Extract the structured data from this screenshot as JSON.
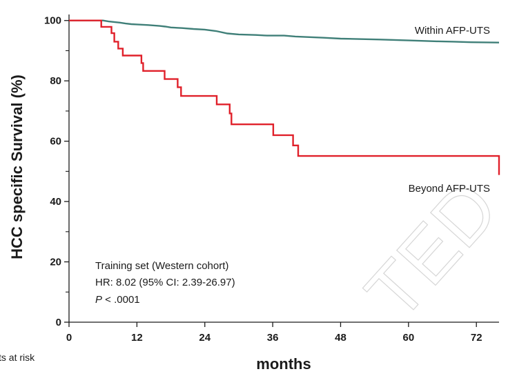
{
  "chart_data": {
    "type": "line",
    "step": true,
    "ylabel": "HCC specific Survival (%)",
    "xlabel": "months",
    "xlim": [
      0,
      76
    ],
    "ylim": [
      0,
      102
    ],
    "x_ticks": [
      0,
      12,
      24,
      36,
      48,
      60,
      72
    ],
    "y_ticks": [
      0,
      20,
      40,
      60,
      80,
      100
    ],
    "y_minor_ticks": [
      10,
      30,
      50,
      70,
      90
    ],
    "grid": false,
    "series": [
      {
        "name": "Within AFP-UTS",
        "color": "#3f7f78",
        "points": [
          [
            0,
            100
          ],
          [
            6,
            100
          ],
          [
            7,
            99.7
          ],
          [
            9,
            99.3
          ],
          [
            10,
            99
          ],
          [
            11,
            98.8
          ],
          [
            12,
            98.7
          ],
          [
            14,
            98.5
          ],
          [
            16,
            98.2
          ],
          [
            17,
            98
          ],
          [
            18,
            97.7
          ],
          [
            20,
            97.5
          ],
          [
            22,
            97.2
          ],
          [
            24,
            97
          ],
          [
            26,
            96.5
          ],
          [
            28,
            95.7
          ],
          [
            30,
            95.4
          ],
          [
            33,
            95.2
          ],
          [
            35,
            95
          ],
          [
            38,
            95
          ],
          [
            40,
            94.7
          ],
          [
            45,
            94.3
          ],
          [
            48,
            94
          ],
          [
            55,
            93.7
          ],
          [
            60,
            93.4
          ],
          [
            65,
            93.1
          ],
          [
            68,
            93
          ],
          [
            71,
            92.8
          ],
          [
            76,
            92.7
          ]
        ]
      },
      {
        "name": "Beyond AFP-UTS",
        "color": "#e0202a",
        "points": [
          [
            0,
            100
          ],
          [
            5.7,
            100
          ],
          [
            5.7,
            97.9
          ],
          [
            7.5,
            97.9
          ],
          [
            7.5,
            95.8
          ],
          [
            8,
            95.8
          ],
          [
            8,
            93
          ],
          [
            8.7,
            93
          ],
          [
            8.7,
            90.7
          ],
          [
            9.5,
            90.7
          ],
          [
            9.5,
            88.4
          ],
          [
            12.8,
            88.4
          ],
          [
            12.8,
            85.9
          ],
          [
            13.1,
            85.9
          ],
          [
            13.1,
            83.3
          ],
          [
            16.9,
            83.3
          ],
          [
            16.9,
            80.6
          ],
          [
            19.2,
            80.6
          ],
          [
            19.2,
            77.9
          ],
          [
            19.8,
            77.9
          ],
          [
            19.8,
            75
          ],
          [
            26.1,
            75
          ],
          [
            26.1,
            72.2
          ],
          [
            28.4,
            72.2
          ],
          [
            28.4,
            69.2
          ],
          [
            28.7,
            69.2
          ],
          [
            28.7,
            65.6
          ],
          [
            36.1,
            65.6
          ],
          [
            36.1,
            62
          ],
          [
            39.6,
            62
          ],
          [
            39.6,
            58.6
          ],
          [
            40.5,
            58.6
          ],
          [
            40.5,
            55.1
          ],
          [
            76,
            55.1
          ],
          [
            76,
            48.8
          ]
        ]
      }
    ],
    "annotations": [
      "Training set (Western cohort)",
      "HR: 8.02 (95% CI: 2.39-26.97)",
      "P",
      " < .0001"
    ],
    "note": "ts at risk",
    "watermark": "TED"
  }
}
